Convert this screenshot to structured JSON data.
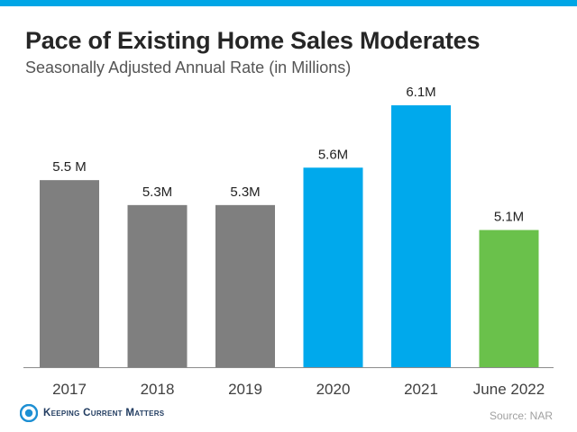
{
  "header": {
    "title": "Pace of Existing Home Sales Moderates",
    "subtitle": "Seasonally Adjusted Annual Rate (in Millions)"
  },
  "chart_data": {
    "type": "bar",
    "title": "Pace of Existing Home Sales Moderates",
    "subtitle": "Seasonally Adjusted Annual Rate (in Millions)",
    "xlabel": "",
    "ylabel": "",
    "categories": [
      "2017",
      "2018",
      "2019",
      "2020",
      "2021",
      "June 2022"
    ],
    "values": [
      5.5,
      5.3,
      5.3,
      5.6,
      6.1,
      5.1
    ],
    "data_labels": [
      "5.5 M",
      "5.3M",
      "5.3M",
      "5.6M",
      "6.1M",
      "5.1M"
    ],
    "ylim": [
      4.0,
      6.1
    ],
    "grid": false,
    "legend": "none",
    "bar_colors": [
      "#7f7f7f",
      "#7f7f7f",
      "#7f7f7f",
      "#00a9ec",
      "#00a9ec",
      "#6ac14b"
    ]
  },
  "footer": {
    "logo_text": "Keeping Current Matters",
    "logo_icon": "kcm-logo-icon",
    "source": "Source: NAR"
  },
  "colors": {
    "accent": "#00a6e6",
    "title": "#262626",
    "axis": "#8c8c8c"
  }
}
